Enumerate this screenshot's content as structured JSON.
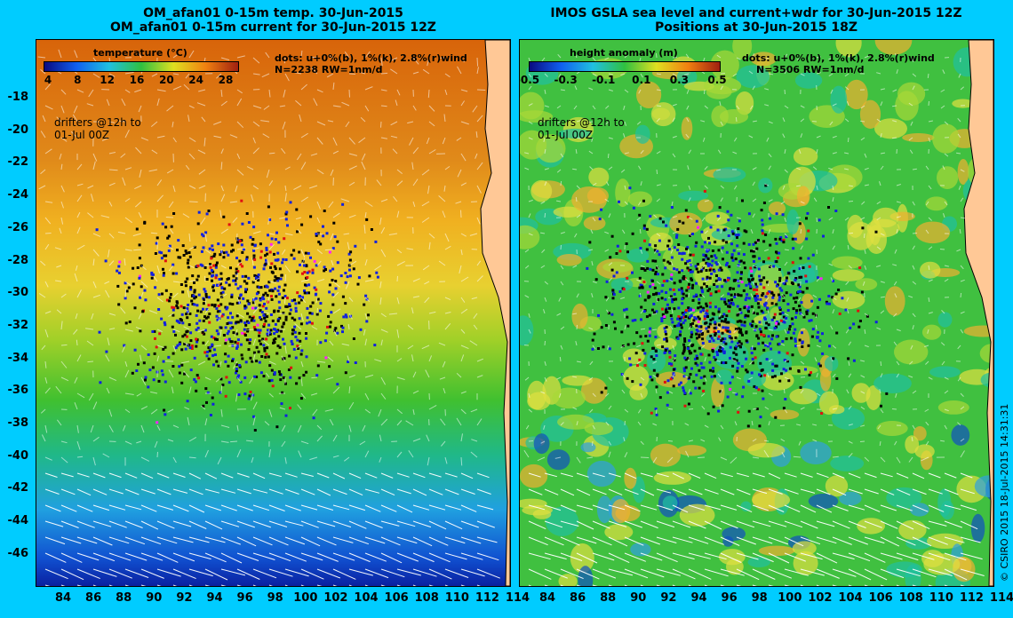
{
  "left": {
    "title_line1": "OM_afan01 0-15m temp. 30-Jun-2015",
    "title_line2": "OM_afan01 0-15m current for 30-Jun-2015 12Z",
    "colorbar_label": "temperature (°C)",
    "colorbar_ticks": [
      "4",
      "8",
      "12",
      "16",
      "20",
      "24",
      "28"
    ],
    "dots_note": "dots: u+0%(b), 1%(k), 2.8%(r)wind",
    "count_note": "N=2238 RW=1nm/d",
    "drifters_line1": "drifters @12h to",
    "drifters_line2": "01-Jul 00Z"
  },
  "right": {
    "title_line1": "IMOS GSLA sea level and current+wdr for 30-Jun-2015 12Z",
    "title_line2": "Positions at 30-Jun-2015 18Z",
    "colorbar_label": "height anomaly (m)",
    "colorbar_ticks": [
      "-0.5",
      "-0.3",
      "-0.1",
      "0.1",
      "0.3",
      "0.5"
    ],
    "dots_note": "dots: u+0%(b), 1%(k), 2.8%(r)wind",
    "count_note": "N=3506 RW=1nm/d",
    "drifters_line1": "drifters @12h to",
    "drifters_line2": "01-Jul 00Z"
  },
  "x_ticks": [
    "84",
    "86",
    "88",
    "90",
    "92",
    "94",
    "96",
    "98",
    "100",
    "102",
    "104",
    "106",
    "108",
    "110",
    "112",
    "114"
  ],
  "y_ticks": [
    "-18",
    "-20",
    "-22",
    "-24",
    "-26",
    "-28",
    "-30",
    "-32",
    "-34",
    "-36",
    "-38",
    "-40",
    "-42",
    "-44",
    "-46"
  ],
  "side_label": "© CSIRO 2015   18-Jul-2015 14:31:31",
  "colors": {
    "background": "#00ccff",
    "land": "#ffc896",
    "coast": "#40e0d0"
  }
}
